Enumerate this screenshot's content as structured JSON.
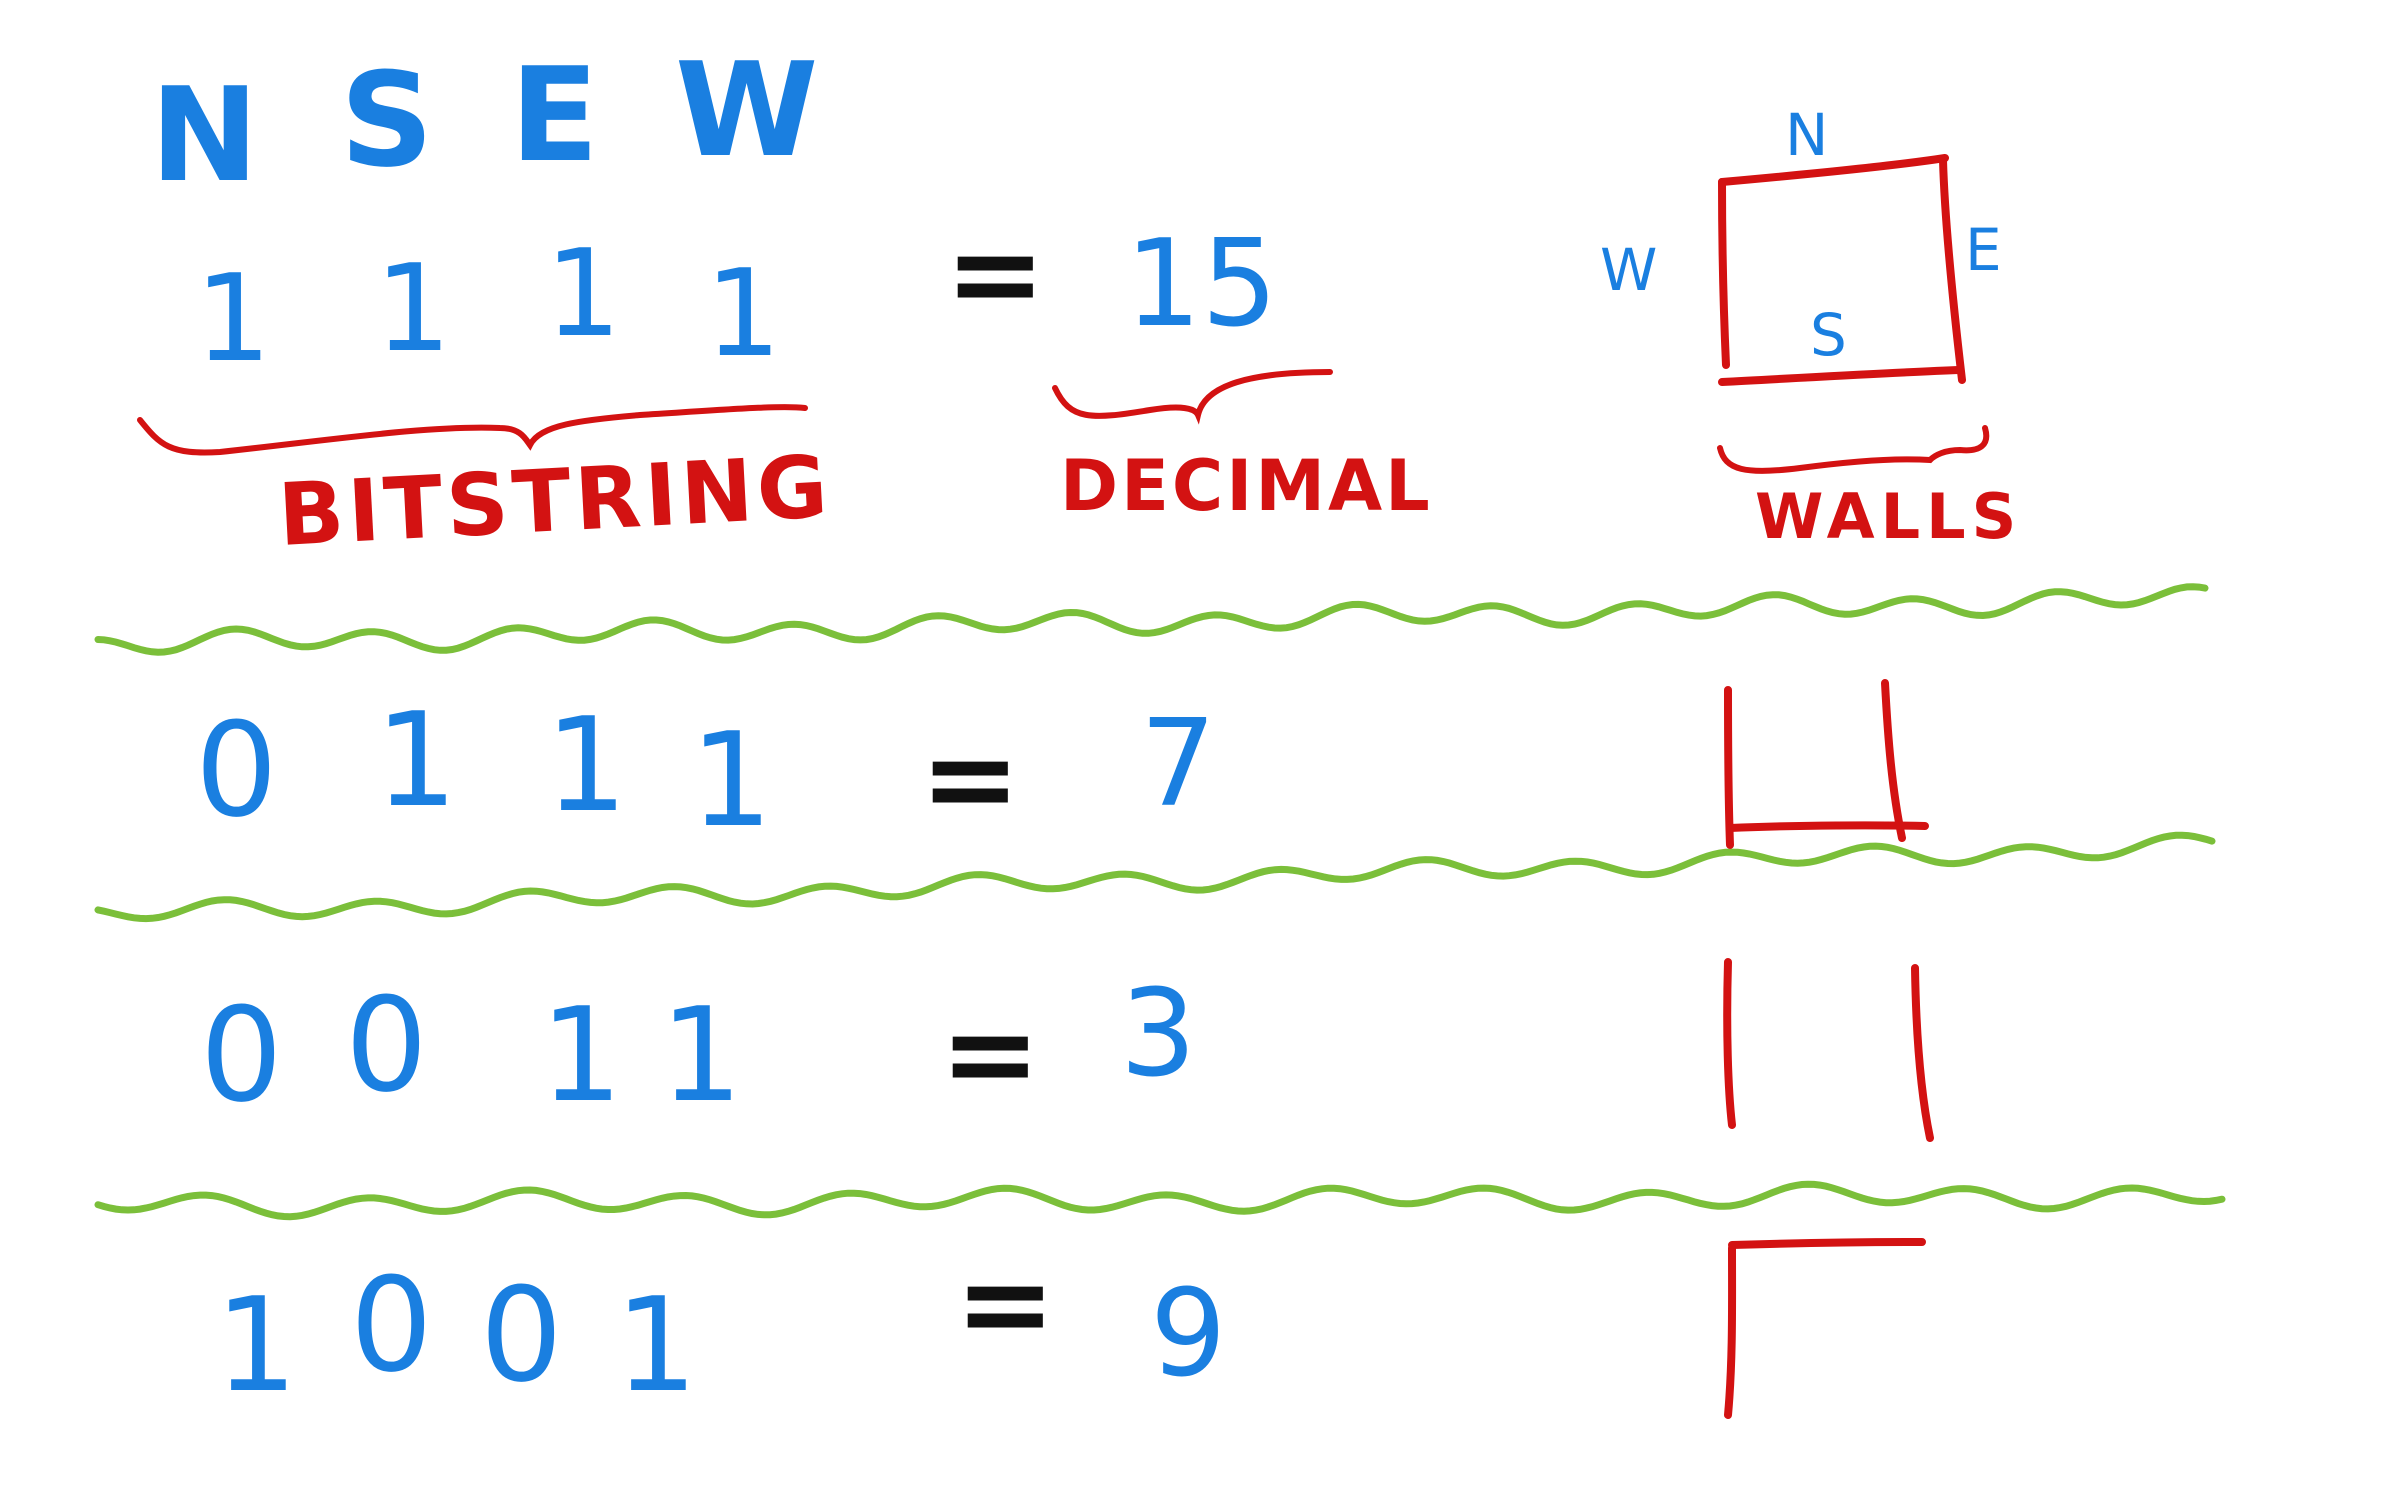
{
  "colors": {
    "blue": "#1a7fe0",
    "red": "#d31212",
    "black": "#111111",
    "green": "#7bbf3a",
    "background": "#ffffff"
  },
  "header": {
    "directions": [
      "N",
      "S",
      "E",
      "W"
    ],
    "bits": [
      "1",
      "1",
      "1",
      "1"
    ],
    "equals": "=",
    "decimal": "15",
    "labels": {
      "bitstring": "BITSTRING",
      "decimal": "DECIMAL",
      "walls": "WALLS"
    },
    "cell": {
      "north": "N",
      "south": "S",
      "east": "E",
      "west": "W"
    }
  },
  "rows": [
    {
      "bits": [
        "0",
        "1",
        "1",
        "1"
      ],
      "equals": "=",
      "decimal": "7",
      "walls": [
        "S",
        "E",
        "W"
      ]
    },
    {
      "bits": [
        "0",
        "0",
        "1",
        "1"
      ],
      "equals": "=",
      "decimal": "3",
      "walls": [
        "E",
        "W"
      ]
    },
    {
      "bits": [
        "1",
        "0",
        "0",
        "1"
      ],
      "equals": "=",
      "decimal": "9",
      "walls": [
        "N",
        "W"
      ]
    }
  ]
}
